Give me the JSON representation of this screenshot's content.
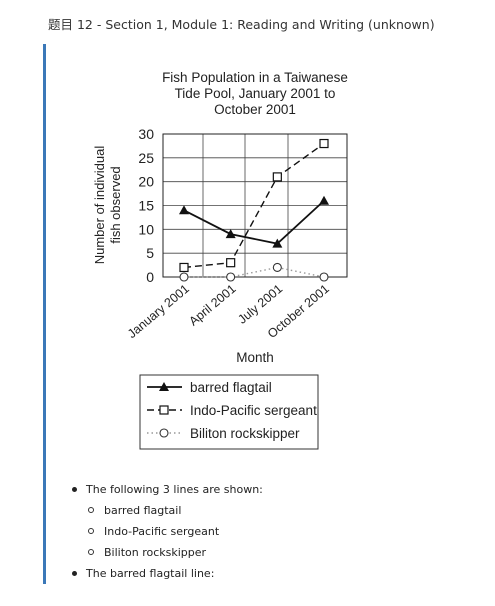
{
  "header": {
    "title": "题目 12 - Section 1, Module 1: Reading and Writing (unknown)"
  },
  "chart_data": {
    "type": "line",
    "title_lines": [
      "Fish Population in a Taiwanese",
      "Tide Pool, January 2001 to",
      "October 2001"
    ],
    "xlabel": "Month",
    "ylabel_lines": [
      "Number of individual",
      "fish observed"
    ],
    "categories": [
      "January 2001",
      "April 2001",
      "July 2001",
      "October 2001"
    ],
    "ylim": [
      0,
      30
    ],
    "yticks": [
      0,
      5,
      10,
      15,
      20,
      25,
      30
    ],
    "grid": true,
    "legend_position": "bottom",
    "series": [
      {
        "name": "barred flagtail",
        "values": [
          14,
          9,
          7,
          16
        ],
        "marker": "filled-triangle",
        "line": "solid",
        "color": "#111111"
      },
      {
        "name": "Indo-Pacific sergeant",
        "values": [
          2,
          3,
          21,
          28
        ],
        "marker": "open-square",
        "line": "dashed",
        "color": "#111111"
      },
      {
        "name": "Biliton rockskipper",
        "values": [
          0,
          0,
          2,
          0
        ],
        "marker": "open-circle",
        "line": "dotted",
        "color": "#999999"
      }
    ]
  },
  "notes": {
    "intro": "The following 3 lines are shown:",
    "lines": [
      "barred flagtail",
      "Indo-Pacific sergeant",
      "Biliton rockskipper"
    ],
    "next": "The barred flagtail line:"
  }
}
